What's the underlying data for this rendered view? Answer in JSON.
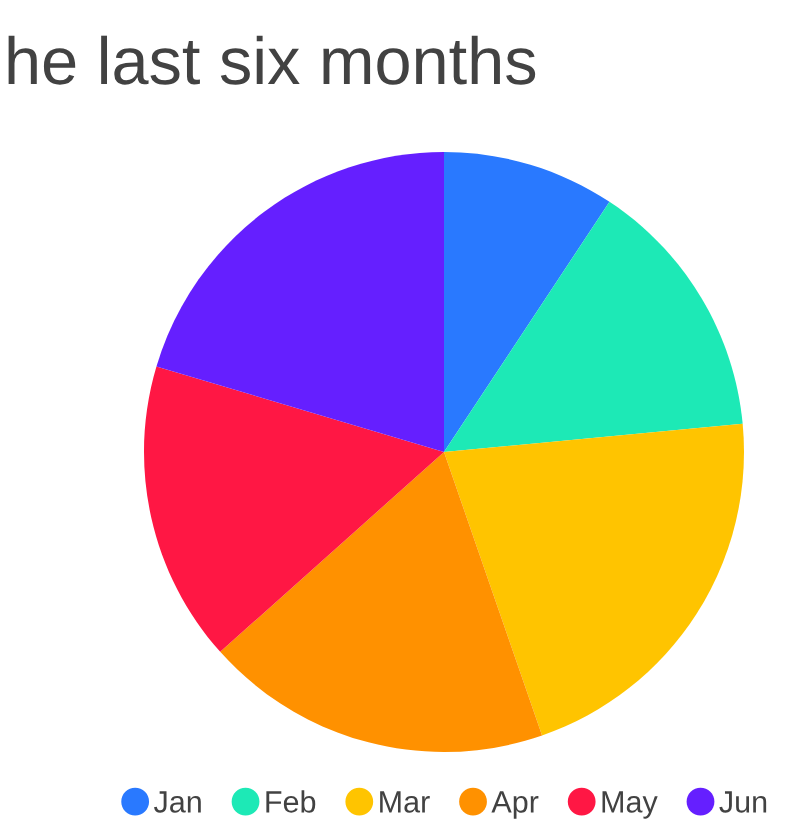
{
  "chart_data": {
    "type": "pie",
    "title": "he last six months",
    "categories": [
      "Jan",
      "Feb",
      "Mar",
      "Apr",
      "May",
      "Jun"
    ],
    "values": [
      9.3,
      14.2,
      21.2,
      18.7,
      16.2,
      20.4
    ],
    "colors": [
      "#2979ff",
      "#1de9b6",
      "#ffc400",
      "#ff9100",
      "#ff1744",
      "#651fff"
    ],
    "legend": "bottom"
  }
}
